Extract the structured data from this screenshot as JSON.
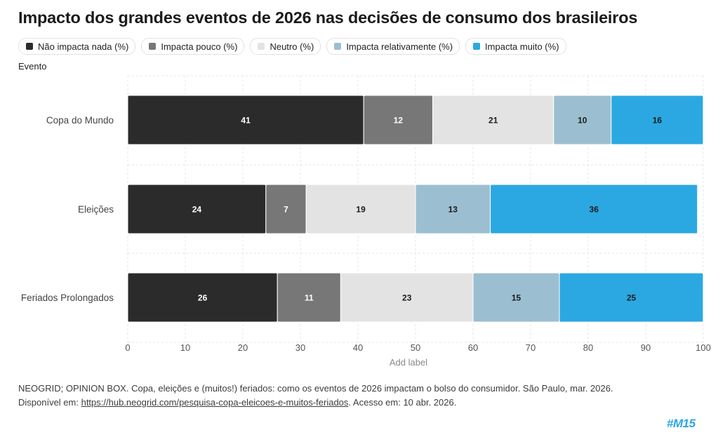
{
  "page": {
    "title": "Impacto dos grandes eventos de 2026 nas decisões de consumo dos brasileiros",
    "y_axis_title": "Evento",
    "source_line1": "NEOGRID; OPINION BOX. Copa, eleições e (muitos!) feriados: como os eventos de 2026 impactam o bolso do consumidor. São Paulo, mar. 2026.",
    "source_prefix": "Disponível em: ",
    "source_link": "https://hub.neogrid.com/pesquisa-copa-eleicoes-e-muitos-feriados",
    "source_suffix": ". Acesso em: 10 abr. 2026.",
    "logo_text": "#M15"
  },
  "chart_data": {
    "type": "bar",
    "orientation": "horizontal",
    "stacked": true,
    "categories": [
      "Copa do Mundo",
      "Eleições",
      "Feriados Prolongados"
    ],
    "series": [
      {
        "name": "Não impacta nada (%)",
        "color": "#2b2b2b",
        "label_color": "#ffffff",
        "values": [
          41,
          24,
          26
        ]
      },
      {
        "name": "Impacta pouco (%)",
        "color": "#777777",
        "label_color": "#ffffff",
        "values": [
          12,
          7,
          11
        ]
      },
      {
        "name": "Neutro (%)",
        "color": "#e3e3e3",
        "label_color": "#1b1b1b",
        "values": [
          21,
          19,
          23
        ]
      },
      {
        "name": "Impacta relativamente (%)",
        "color": "#9bbfd0",
        "label_color": "#1b1b1b",
        "values": [
          10,
          13,
          15
        ]
      },
      {
        "name": "Impacta muito (%)",
        "color": "#2ba8e2",
        "label_color": "#1b1b1b",
        "values": [
          16,
          36,
          25
        ]
      }
    ],
    "xlim": [
      0,
      100
    ],
    "xticks": [
      0,
      10,
      20,
      30,
      40,
      50,
      60,
      70,
      80,
      90,
      100
    ],
    "xlabel": "Add label",
    "ylabel": "Evento",
    "grid": true,
    "legend_position": "top-left",
    "data_labels": true
  }
}
